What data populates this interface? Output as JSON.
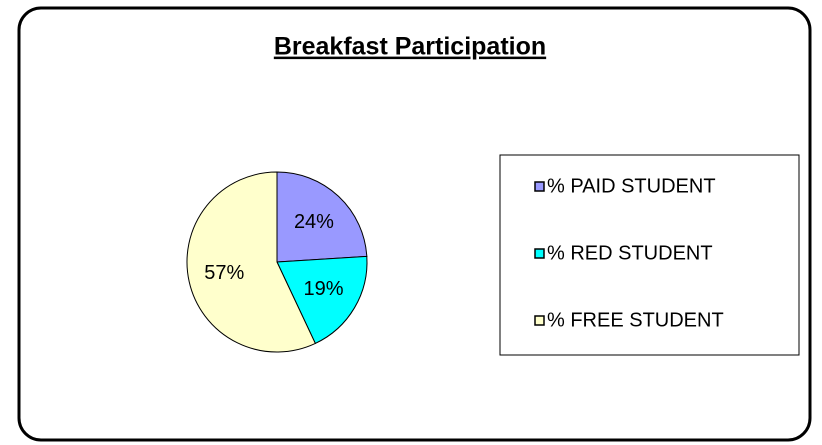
{
  "chart_data": {
    "type": "pie",
    "title": "Breakfast Participation",
    "categories": [
      "% PAID STUDENT",
      "% RED STUDENT",
      "% FREE STUDENT"
    ],
    "values": [
      24,
      19,
      57
    ],
    "value_labels": [
      "24%",
      "19%",
      "57%"
    ],
    "colors": [
      "#9999ff",
      "#00ffff",
      "#ffffcc"
    ],
    "legend": "right"
  }
}
